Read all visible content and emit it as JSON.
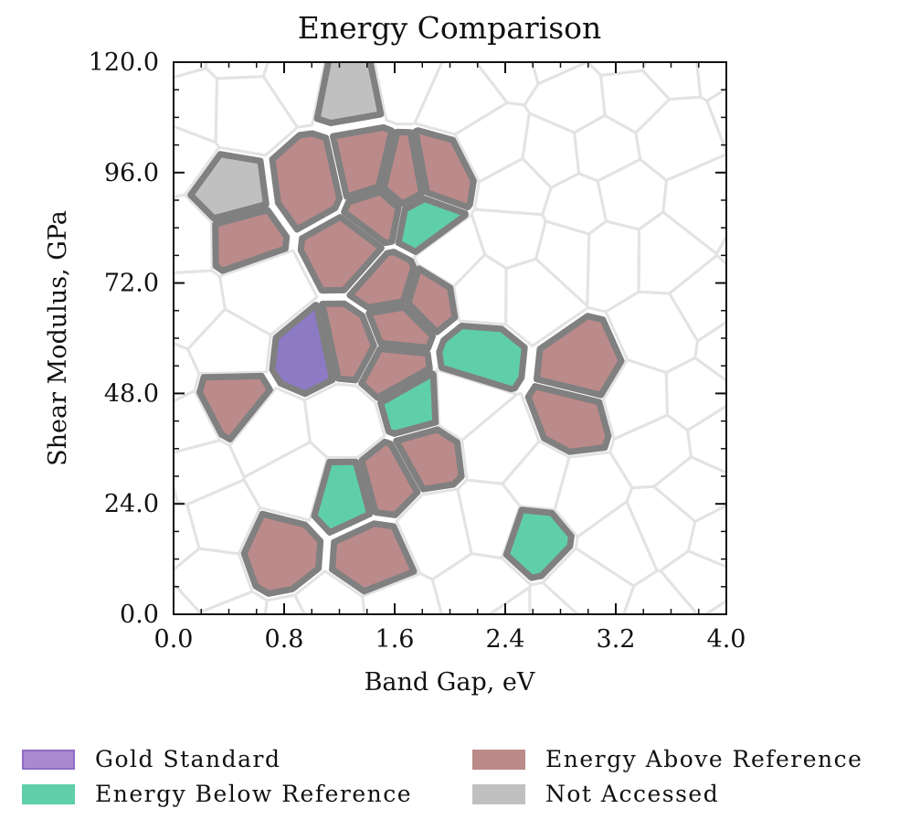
{
  "chart_data": {
    "type": "voronoi-scatter",
    "title": "Energy Comparison",
    "xlabel": "Band Gap, eV",
    "ylabel": "Shear Modulus, GPa",
    "xlim": [
      0.0,
      4.0
    ],
    "ylim": [
      0.0,
      120.0
    ],
    "xticks": [
      "0.0",
      "0.8",
      "1.6",
      "2.4",
      "3.2",
      "4.0"
    ],
    "yticks": [
      "0.0",
      "24.0",
      "48.0",
      "72.0",
      "96.0",
      "120.0"
    ],
    "colors": {
      "gold": "#8c7ac4",
      "below": "#5fcfaa",
      "above": "#bb8a8a",
      "not_accessed": "#c0c0c0",
      "cell_border": "#808080",
      "mesh": "#e3e3e3"
    },
    "legend": [
      {
        "label": "Gold Standard",
        "category": "gold"
      },
      {
        "label": "Energy Below Reference",
        "category": "below"
      },
      {
        "label": "Energy Above Reference",
        "category": "above"
      },
      {
        "label": "Not Accessed",
        "category": "not_accessed"
      }
    ],
    "points": [
      {
        "x": 1.26,
        "y": 116.5,
        "category": "not_accessed"
      },
      {
        "x": 0.39,
        "y": 91.0,
        "category": "not_accessed"
      },
      {
        "x": 0.47,
        "y": 82.0,
        "category": "above"
      },
      {
        "x": 1.01,
        "y": 93.5,
        "category": "above"
      },
      {
        "x": 1.38,
        "y": 96.0,
        "category": "above"
      },
      {
        "x": 1.66,
        "y": 94.0,
        "category": "above"
      },
      {
        "x": 1.93,
        "y": 95.5,
        "category": "above"
      },
      {
        "x": 1.47,
        "y": 87.5,
        "category": "above"
      },
      {
        "x": 1.81,
        "y": 85.5,
        "category": "below"
      },
      {
        "x": 1.27,
        "y": 79.5,
        "category": "above"
      },
      {
        "x": 1.57,
        "y": 71.5,
        "category": "above"
      },
      {
        "x": 1.84,
        "y": 69.0,
        "category": "above"
      },
      {
        "x": 1.62,
        "y": 62.5,
        "category": "above"
      },
      {
        "x": 0.97,
        "y": 56.5,
        "category": "gold"
      },
      {
        "x": 1.28,
        "y": 58.5,
        "category": "above"
      },
      {
        "x": 1.59,
        "y": 53.5,
        "category": "above"
      },
      {
        "x": 2.19,
        "y": 56.0,
        "category": "below"
      },
      {
        "x": 2.98,
        "y": 53.5,
        "category": "above"
      },
      {
        "x": 0.42,
        "y": 46.5,
        "category": "above"
      },
      {
        "x": 1.74,
        "y": 45.5,
        "category": "below"
      },
      {
        "x": 2.89,
        "y": 42.5,
        "category": "above"
      },
      {
        "x": 1.84,
        "y": 34.5,
        "category": "above"
      },
      {
        "x": 1.54,
        "y": 29.5,
        "category": "above"
      },
      {
        "x": 1.23,
        "y": 27.0,
        "category": "below"
      },
      {
        "x": 2.61,
        "y": 17.5,
        "category": "below"
      },
      {
        "x": 0.75,
        "y": 13.5,
        "category": "above"
      },
      {
        "x": 1.46,
        "y": 12.0,
        "category": "above"
      }
    ]
  }
}
